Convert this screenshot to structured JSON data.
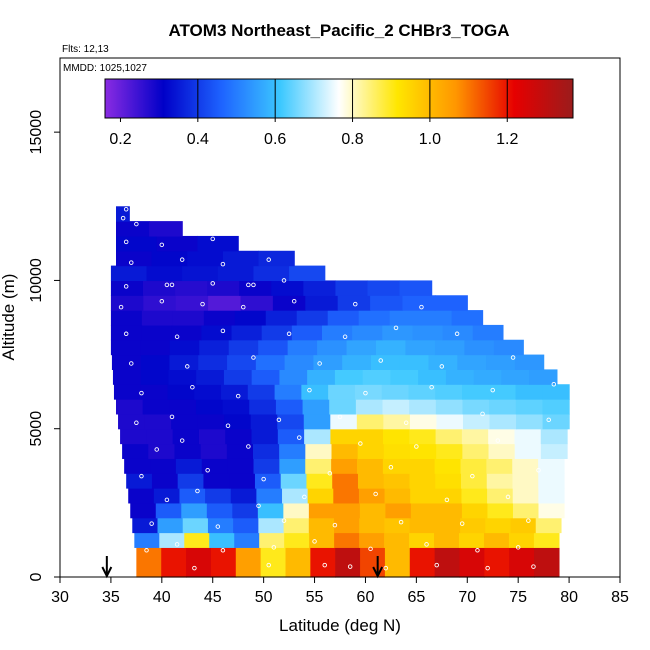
{
  "chart_data": {
    "type": "heatmap",
    "title": "ATOM3 Northeast_Pacific_2 CHBr3_TOGA",
    "flights_label": "Flts: 12,13",
    "dates_label": "MMDD: 1025,1027",
    "xlabel": "Latitude (deg N)",
    "ylabel": "Altitude (m)",
    "xlim": [
      30,
      85
    ],
    "ylim": [
      0,
      17500
    ],
    "xticks": [
      30,
      35,
      40,
      45,
      50,
      55,
      60,
      65,
      70,
      75,
      80,
      85
    ],
    "yticks": [
      0,
      5000,
      10000,
      15000
    ],
    "colorbar": {
      "min": 0.16,
      "max": 1.37,
      "ticks": [
        0.2,
        0.4,
        0.6,
        0.8,
        1.0,
        1.2
      ],
      "tick_labels": [
        "0.2",
        "0.4",
        "0.6",
        "0.8",
        "1.0",
        "1.2"
      ],
      "divisions": [
        0.4,
        0.6,
        0.8,
        1.0,
        1.2
      ],
      "colors": [
        "#8a2be2",
        "#0000c8",
        "#1e64ff",
        "#3cc8ff",
        "#ffffff",
        "#ffe600",
        "#ff9600",
        "#e60000",
        "#9b1c1c"
      ]
    },
    "field": [
      {
        "alt_min": 0,
        "alt_max": 1000,
        "lat_start": 37.5,
        "lat_end": 79.0,
        "values": [
          1.1,
          1.2,
          1.25,
          1.2,
          1.05,
          0.9,
          1.0,
          1.2,
          1.3,
          1.15,
          1.0,
          1.2,
          1.3,
          1.25,
          1.2,
          1.25,
          1.3
        ]
      },
      {
        "alt_min": 1000,
        "alt_max": 1500,
        "lat_start": 37.3,
        "lat_end": 79.0,
        "values": [
          0.5,
          0.7,
          0.9,
          0.6,
          0.5,
          0.85,
          0.9,
          1.0,
          1.1,
          1.05,
          1.0,
          0.95,
          1.0,
          0.95,
          1.0,
          0.95,
          0.9
        ]
      },
      {
        "alt_min": 1500,
        "alt_max": 2000,
        "lat_start": 37.1,
        "lat_end": 79.2,
        "values": [
          0.35,
          0.55,
          0.65,
          0.5,
          0.45,
          0.7,
          0.85,
          1.0,
          1.05,
          1.0,
          0.98,
          1.0,
          1.0,
          0.97,
          0.95,
          0.97,
          0.85
        ]
      },
      {
        "alt_min": 2000,
        "alt_max": 2500,
        "lat_start": 36.9,
        "lat_end": 79.5,
        "values": [
          0.3,
          0.45,
          0.55,
          0.45,
          0.4,
          0.6,
          0.8,
          1.05,
          1.05,
          1.0,
          1.05,
          1.0,
          1.0,
          0.95,
          0.9,
          0.85,
          0.78
        ]
      },
      {
        "alt_min": 2500,
        "alt_max": 3000,
        "lat_start": 36.7,
        "lat_end": 79.5,
        "values": [
          0.3,
          0.35,
          0.45,
          0.4,
          0.35,
          0.5,
          0.7,
          0.95,
          1.1,
          1.05,
          1.0,
          0.95,
          0.95,
          0.9,
          0.85,
          0.8,
          0.75
        ]
      },
      {
        "alt_min": 3000,
        "alt_max": 3500,
        "lat_start": 36.5,
        "lat_end": 79.5,
        "values": [
          0.35,
          0.3,
          0.4,
          0.3,
          0.3,
          0.45,
          0.65,
          0.9,
          1.1,
          1.0,
          0.98,
          0.95,
          0.93,
          0.88,
          0.82,
          0.8,
          0.75
        ]
      },
      {
        "alt_min": 3500,
        "alt_max": 4000,
        "lat_start": 36.3,
        "lat_end": 79.5,
        "values": [
          0.3,
          0.3,
          0.35,
          0.3,
          0.3,
          0.4,
          0.55,
          0.85,
          1.05,
          1.0,
          0.95,
          0.95,
          0.92,
          0.88,
          0.85,
          0.8,
          0.75
        ]
      },
      {
        "alt_min": 4000,
        "alt_max": 4500,
        "lat_start": 36.1,
        "lat_end": 79.8,
        "values": [
          0.3,
          0.28,
          0.3,
          0.28,
          0.3,
          0.38,
          0.5,
          0.8,
          1.0,
          0.95,
          0.93,
          0.92,
          0.9,
          0.85,
          0.8,
          0.75,
          0.72
        ]
      },
      {
        "alt_min": 4500,
        "alt_max": 5000,
        "lat_start": 35.9,
        "lat_end": 79.8,
        "values": [
          0.28,
          0.28,
          0.3,
          0.28,
          0.3,
          0.35,
          0.45,
          0.7,
          0.95,
          0.95,
          0.92,
          0.9,
          0.85,
          0.82,
          0.78,
          0.75,
          0.7
        ]
      },
      {
        "alt_min": 5000,
        "alt_max": 5500,
        "lat_start": 35.7,
        "lat_end": 80.0,
        "values": [
          0.28,
          0.28,
          0.3,
          0.3,
          0.32,
          0.35,
          0.42,
          0.55,
          0.75,
          0.85,
          0.82,
          0.78,
          0.75,
          0.72,
          0.7,
          0.68,
          0.65
        ]
      },
      {
        "alt_min": 5500,
        "alt_max": 6000,
        "lat_start": 35.5,
        "lat_end": 80.0,
        "values": [
          0.28,
          0.3,
          0.3,
          0.32,
          0.33,
          0.38,
          0.45,
          0.55,
          0.65,
          0.7,
          0.72,
          0.7,
          0.68,
          0.66,
          0.65,
          0.64,
          0.63
        ]
      },
      {
        "alt_min": 6000,
        "alt_max": 6500,
        "lat_start": 35.3,
        "lat_end": 80.0,
        "values": [
          0.3,
          0.3,
          0.32,
          0.33,
          0.35,
          0.4,
          0.5,
          0.6,
          0.65,
          0.66,
          0.65,
          0.64,
          0.63,
          0.62,
          0.62,
          0.6,
          0.6
        ]
      },
      {
        "alt_min": 6500,
        "alt_max": 7000,
        "lat_start": 35.2,
        "lat_end": 78.8,
        "values": [
          0.3,
          0.32,
          0.33,
          0.35,
          0.4,
          0.45,
          0.52,
          0.58,
          0.62,
          0.63,
          0.62,
          0.6,
          0.58,
          0.57,
          0.56,
          0.55
        ]
      },
      {
        "alt_min": 7000,
        "alt_max": 7500,
        "lat_start": 35.1,
        "lat_end": 77.5,
        "values": [
          0.3,
          0.32,
          0.35,
          0.38,
          0.42,
          0.48,
          0.52,
          0.55,
          0.58,
          0.6,
          0.6,
          0.58,
          0.56,
          0.55,
          0.54
        ]
      },
      {
        "alt_min": 7500,
        "alt_max": 8000,
        "lat_start": 35.0,
        "lat_end": 75.5,
        "values": [
          0.3,
          0.3,
          0.33,
          0.36,
          0.4,
          0.44,
          0.5,
          0.53,
          0.56,
          0.58,
          0.56,
          0.55,
          0.53,
          0.52
        ]
      },
      {
        "alt_min": 8000,
        "alt_max": 8500,
        "lat_start": 35.0,
        "lat_end": 73.5,
        "values": [
          0.3,
          0.3,
          0.3,
          0.33,
          0.36,
          0.4,
          0.45,
          0.5,
          0.52,
          0.54,
          0.53,
          0.52,
          0.5
        ]
      },
      {
        "alt_min": 8500,
        "alt_max": 9000,
        "lat_start": 35.0,
        "lat_end": 71.5,
        "values": [
          0.3,
          0.28,
          0.28,
          0.3,
          0.32,
          0.36,
          0.4,
          0.45,
          0.48,
          0.5,
          0.5,
          0.48
        ]
      },
      {
        "alt_min": 9000,
        "alt_max": 9500,
        "lat_start": 35.0,
        "lat_end": 70.0,
        "values": [
          0.28,
          0.26,
          0.25,
          0.22,
          0.26,
          0.3,
          0.35,
          0.4,
          0.44,
          0.46,
          0.46
        ]
      },
      {
        "alt_min": 9500,
        "alt_max": 10000,
        "lat_start": 35.0,
        "lat_end": 66.5,
        "values": [
          0.3,
          0.28,
          0.27,
          0.28,
          0.3,
          0.33,
          0.36,
          0.4,
          0.42,
          0.44
        ]
      },
      {
        "alt_min": 10000,
        "alt_max": 10500,
        "lat_start": 35.0,
        "lat_end": 56.0,
        "values": [
          0.35,
          0.33,
          0.34,
          0.35,
          0.38,
          0.42
        ]
      },
      {
        "alt_min": 10500,
        "alt_max": 11000,
        "lat_start": 35.5,
        "lat_end": 53.0,
        "values": [
          0.3,
          0.32,
          0.33,
          0.35,
          0.37
        ]
      },
      {
        "alt_min": 11000,
        "alt_max": 11500,
        "lat_start": 35.5,
        "lat_end": 47.5,
        "values": [
          0.32,
          0.3,
          0.33
        ]
      },
      {
        "alt_min": 11500,
        "alt_max": 12000,
        "lat_start": 35.5,
        "lat_end": 42.0,
        "values": [
          0.3,
          0.28
        ]
      },
      {
        "alt_min": 12000,
        "alt_max": 12500,
        "lat_start": 35.5,
        "lat_end": 36.8,
        "values": [
          0.35
        ]
      }
    ],
    "sample_points": [
      [
        43.2,
        300
      ],
      [
        50.5,
        400
      ],
      [
        56.0,
        400
      ],
      [
        58.5,
        350
      ],
      [
        62.0,
        300
      ],
      [
        67.0,
        400
      ],
      [
        72.0,
        300
      ],
      [
        76.5,
        350
      ],
      [
        38.5,
        900
      ],
      [
        41.5,
        1100
      ],
      [
        46.0,
        900
      ],
      [
        51.0,
        1000
      ],
      [
        55.0,
        1200
      ],
      [
        60.5,
        950
      ],
      [
        66.0,
        1100
      ],
      [
        71.0,
        900
      ],
      [
        75.0,
        1000
      ],
      [
        39.0,
        1800
      ],
      [
        45.5,
        1700
      ],
      [
        52.0,
        1900
      ],
      [
        57.0,
        1750
      ],
      [
        63.5,
        1850
      ],
      [
        69.5,
        1800
      ],
      [
        76.0,
        1900
      ],
      [
        40.5,
        2600
      ],
      [
        43.5,
        2900
      ],
      [
        49.5,
        2400
      ],
      [
        54.0,
        2700
      ],
      [
        61.0,
        2800
      ],
      [
        68.0,
        2600
      ],
      [
        74.0,
        2700
      ],
      [
        38.0,
        3400
      ],
      [
        44.5,
        3600
      ],
      [
        50.0,
        3300
      ],
      [
        56.5,
        3500
      ],
      [
        62.5,
        3700
      ],
      [
        70.5,
        3400
      ],
      [
        77.0,
        3600
      ],
      [
        39.5,
        4300
      ],
      [
        42.0,
        4600
      ],
      [
        48.5,
        4400
      ],
      [
        53.5,
        4700
      ],
      [
        59.5,
        4500
      ],
      [
        65.0,
        4400
      ],
      [
        73.0,
        4600
      ],
      [
        37.5,
        5200
      ],
      [
        41.0,
        5400
      ],
      [
        46.5,
        5100
      ],
      [
        51.5,
        5300
      ],
      [
        57.5,
        5400
      ],
      [
        64.0,
        5200
      ],
      [
        71.5,
        5500
      ],
      [
        78.0,
        5300
      ],
      [
        38.0,
        6200
      ],
      [
        43.0,
        6400
      ],
      [
        47.5,
        6100
      ],
      [
        54.5,
        6300
      ],
      [
        60.0,
        6200
      ],
      [
        66.5,
        6400
      ],
      [
        72.5,
        6300
      ],
      [
        78.5,
        6500
      ],
      [
        37.0,
        7200
      ],
      [
        42.5,
        7100
      ],
      [
        49.0,
        7400
      ],
      [
        55.5,
        7200
      ],
      [
        61.5,
        7300
      ],
      [
        67.5,
        7100
      ],
      [
        74.5,
        7400
      ],
      [
        36.5,
        8200
      ],
      [
        41.5,
        8100
      ],
      [
        46.0,
        8300
      ],
      [
        52.5,
        8200
      ],
      [
        58.0,
        8100
      ],
      [
        63.0,
        8400
      ],
      [
        69.0,
        8200
      ],
      [
        36.0,
        9100
      ],
      [
        40.0,
        9300
      ],
      [
        44.0,
        9200
      ],
      [
        48.0,
        9100
      ],
      [
        53.0,
        9300
      ],
      [
        59.0,
        9200
      ],
      [
        65.5,
        9100
      ],
      [
        36.5,
        9800
      ],
      [
        40.5,
        9850
      ],
      [
        41.0,
        9850
      ],
      [
        45.0,
        9900
      ],
      [
        48.5,
        9850
      ],
      [
        49.0,
        9850
      ],
      [
        52.0,
        10000
      ],
      [
        37.0,
        10600
      ],
      [
        42.0,
        10700
      ],
      [
        46.0,
        10550
      ],
      [
        50.5,
        10700
      ],
      [
        36.5,
        11300
      ],
      [
        40.0,
        11200
      ],
      [
        45.0,
        11400
      ],
      [
        36.2,
        12100
      ],
      [
        37.5,
        11900
      ],
      [
        36.5,
        12400
      ]
    ],
    "markers": [
      {
        "lat": 34.6,
        "label": "down-arrow"
      },
      {
        "lat": 61.2,
        "label": "down-arrow"
      }
    ]
  }
}
